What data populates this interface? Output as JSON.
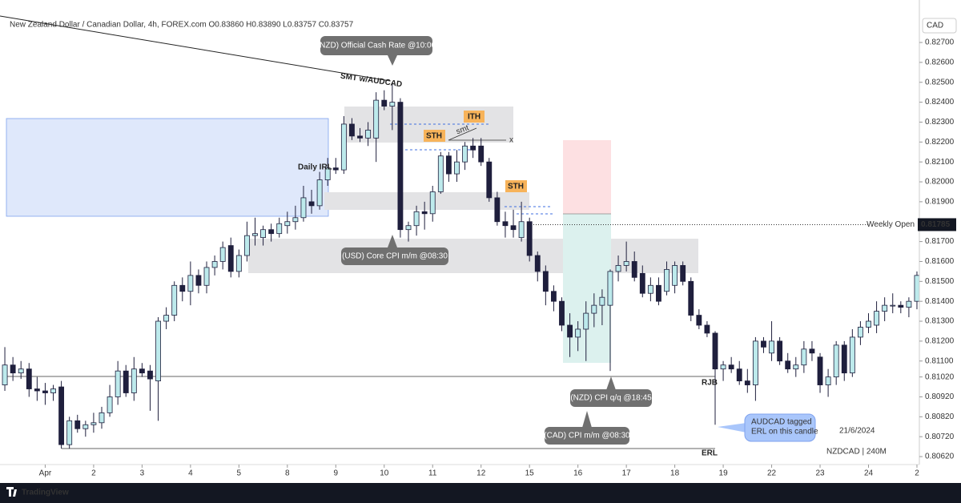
{
  "chart_data": {
    "type": "candlestick",
    "title": "New Zealand Dollar / Canadian Dollar, 4h, FOREX.com  O0.83860 H0.83890 L0.83757 C0.83757",
    "currency": "CAD",
    "up_color": "#bdeaec",
    "down_color": "#1f1f3d",
    "open": [
      0.8098,
      0.8108,
      0.8104,
      0.8106,
      0.8096,
      0.8095,
      0.8094,
      0.8097,
      0.8068,
      0.808,
      0.8076,
      0.8078,
      0.8079,
      0.8084,
      0.8092,
      0.8105,
      0.8094,
      0.8106,
      0.8105,
      0.81,
      0.813,
      0.8133,
      0.8148,
      0.8145,
      0.8153,
      0.8148,
      0.8157,
      0.816,
      0.8168,
      0.8155,
      0.8163,
      0.8173,
      0.8172,
      0.8176,
      0.8174,
      0.8178,
      0.818,
      0.8182,
      0.819,
      0.8188,
      0.8201,
      0.8207,
      0.8206,
      0.8229,
      0.8223,
      0.8222,
      0.8222,
      0.8241,
      0.8238,
      0.824,
      0.8176,
      0.8178,
      0.8185,
      0.8184,
      0.8195,
      0.8213,
      0.8204,
      0.821,
      0.8218,
      0.8218,
      0.821,
      0.8192,
      0.818,
      0.8178,
      0.8172,
      0.818,
      0.8163,
      0.8155,
      0.8145,
      0.814,
      0.8128,
      0.8122,
      0.8126,
      0.8134,
      0.8138,
      0.8138,
      0.8155,
      0.8158,
      0.816,
      0.8154,
      0.8144,
      0.8148,
      0.8145,
      0.8148,
      0.8158,
      0.815,
      0.8133,
      0.8128,
      0.8124,
      0.8106,
      0.8108,
      0.8106,
      0.81,
      0.8098,
      0.812,
      0.8114,
      0.812,
      0.811,
      0.8106,
      0.8108,
      0.8116,
      0.8112,
      0.8098,
      0.8102,
      0.8118,
      0.8104,
      0.8122,
      0.8127,
      0.8128,
      0.8135,
      0.8138,
      0.8138,
      0.8137,
      0.814
    ],
    "high": [
      0.8117,
      0.8112,
      0.811,
      0.8109,
      0.8102,
      0.8099,
      0.8098,
      0.81,
      0.8082,
      0.8083,
      0.808,
      0.8084,
      0.8087,
      0.8098,
      0.811,
      0.8108,
      0.8112,
      0.8109,
      0.8108,
      0.8132,
      0.8137,
      0.815,
      0.8152,
      0.816,
      0.8156,
      0.816,
      0.8163,
      0.817,
      0.8172,
      0.8166,
      0.818,
      0.8182,
      0.8178,
      0.8179,
      0.8182,
      0.8185,
      0.8188,
      0.8198,
      0.8196,
      0.8205,
      0.8212,
      0.8212,
      0.8233,
      0.8232,
      0.8227,
      0.823,
      0.8245,
      0.8246,
      0.825,
      0.8242,
      0.818,
      0.8188,
      0.819,
      0.8198,
      0.8215,
      0.8215,
      0.8216,
      0.822,
      0.8222,
      0.8222,
      0.8212,
      0.8195,
      0.8185,
      0.8186,
      0.819,
      0.8182,
      0.8165,
      0.8158,
      0.8148,
      0.8142,
      0.8134,
      0.813,
      0.814,
      0.8144,
      0.8146,
      0.8156,
      0.8163,
      0.817,
      0.8165,
      0.8158,
      0.8152,
      0.8152,
      0.816,
      0.816,
      0.816,
      0.8152,
      0.8136,
      0.813,
      0.8125,
      0.811,
      0.8112,
      0.811,
      0.8106,
      0.8122,
      0.8122,
      0.813,
      0.8122,
      0.8114,
      0.8112,
      0.812,
      0.812,
      0.8114,
      0.8106,
      0.812,
      0.812,
      0.8126,
      0.813,
      0.8134,
      0.814,
      0.8142,
      0.8144,
      0.814,
      0.8142,
      0.8155
    ],
    "low": [
      0.8095,
      0.81,
      0.8101,
      0.8092,
      0.809,
      0.8088,
      0.809,
      0.8066,
      0.8066,
      0.8074,
      0.8072,
      0.8074,
      0.8076,
      0.8082,
      0.8088,
      0.8092,
      0.809,
      0.8102,
      0.8085,
      0.808,
      0.8126,
      0.813,
      0.814,
      0.8138,
      0.8144,
      0.8144,
      0.8153,
      0.8156,
      0.8152,
      0.8152,
      0.816,
      0.8168,
      0.8168,
      0.817,
      0.8172,
      0.8174,
      0.8176,
      0.818,
      0.8184,
      0.8186,
      0.8198,
      0.8204,
      0.8204,
      0.8221,
      0.822,
      0.8218,
      0.821,
      0.8236,
      0.8226,
      0.8172,
      0.817,
      0.8173,
      0.8176,
      0.818,
      0.8194,
      0.82,
      0.82,
      0.8206,
      0.8212,
      0.8208,
      0.819,
      0.8178,
      0.8172,
      0.8172,
      0.817,
      0.816,
      0.815,
      0.8138,
      0.8135,
      0.8125,
      0.8112,
      0.8115,
      0.811,
      0.8127,
      0.8128,
      0.8105,
      0.815,
      0.8155,
      0.815,
      0.8142,
      0.814,
      0.8138,
      0.8143,
      0.8144,
      0.8148,
      0.813,
      0.8126,
      0.8122,
      0.8078,
      0.81,
      0.8104,
      0.8098,
      0.8094,
      0.809,
      0.8114,
      0.811,
      0.8108,
      0.8104,
      0.8102,
      0.8104,
      0.811,
      0.8094,
      0.8092,
      0.8098,
      0.81,
      0.8102,
      0.8118,
      0.8124,
      0.8124,
      0.813,
      0.8134,
      0.8134,
      0.8132,
      0.8136
    ],
    "close": [
      0.8108,
      0.8104,
      0.8106,
      0.8096,
      0.8095,
      0.8094,
      0.8096,
      0.8068,
      0.808,
      0.8076,
      0.8078,
      0.8079,
      0.8084,
      0.8092,
      0.8105,
      0.8094,
      0.8106,
      0.8104,
      0.8101,
      0.813,
      0.8133,
      0.8148,
      0.8145,
      0.8153,
      0.8148,
      0.8157,
      0.816,
      0.8167,
      0.8155,
      0.8163,
      0.8173,
      0.8174,
      0.8176,
      0.8174,
      0.8179,
      0.818,
      0.8182,
      0.8192,
      0.8188,
      0.8201,
      0.8207,
      0.8206,
      0.8229,
      0.8223,
      0.8222,
      0.8226,
      0.8241,
      0.8238,
      0.824,
      0.8176,
      0.8178,
      0.8185,
      0.8184,
      0.8195,
      0.8213,
      0.8204,
      0.821,
      0.8218,
      0.8216,
      0.821,
      0.8192,
      0.818,
      0.8178,
      0.8176,
      0.818,
      0.8163,
      0.8155,
      0.8145,
      0.814,
      0.8128,
      0.8122,
      0.8126,
      0.8134,
      0.8138,
      0.8142,
      0.8155,
      0.8158,
      0.816,
      0.8152,
      0.8144,
      0.8148,
      0.814,
      0.8156,
      0.8158,
      0.815,
      0.8133,
      0.8128,
      0.8124,
      0.8106,
      0.8108,
      0.8106,
      0.81,
      0.8098,
      0.812,
      0.8117,
      0.812,
      0.811,
      0.8106,
      0.8108,
      0.8116,
      0.8114,
      0.8098,
      0.8102,
      0.8118,
      0.8104,
      0.8122,
      0.8127,
      0.813,
      0.8135,
      0.8138,
      0.8138,
      0.8137,
      0.814,
      0.8153
    ],
    "xlim": [
      -0.6,
      113.3
    ],
    "xticks": [
      {
        "value": 5,
        "label": "Apr"
      },
      {
        "value": 11,
        "label": "2"
      },
      {
        "value": 17,
        "label": "3"
      },
      {
        "value": 23,
        "label": "4"
      },
      {
        "value": 29,
        "label": "5"
      },
      {
        "value": 35,
        "label": "8"
      },
      {
        "value": 41,
        "label": "9"
      },
      {
        "value": 47,
        "label": "10"
      },
      {
        "value": 53,
        "label": "11"
      },
      {
        "value": 59,
        "label": "12"
      },
      {
        "value": 65,
        "label": "15"
      },
      {
        "value": 71,
        "label": "16"
      },
      {
        "value": 77,
        "label": "17"
      },
      {
        "value": 83,
        "label": "18"
      },
      {
        "value": 89,
        "label": "19"
      },
      {
        "value": 95,
        "label": "22"
      },
      {
        "value": 101,
        "label": "23"
      },
      {
        "value": 107,
        "label": "24"
      },
      {
        "value": 113,
        "label": "2"
      }
    ],
    "ylim": [
      0.8058,
      0.8282
    ],
    "yticks": [
      {
        "value": 0.8062,
        "label": "0.80620"
      },
      {
        "value": 0.8072,
        "label": "0.80720"
      },
      {
        "value": 0.8082,
        "label": "0.80820"
      },
      {
        "value": 0.8092,
        "label": "0.80920"
      },
      {
        "value": 0.8102,
        "label": "0.81020"
      },
      {
        "value": 0.811,
        "label": "0.81100"
      },
      {
        "value": 0.812,
        "label": "0.81200"
      },
      {
        "value": 0.813,
        "label": "0.81300"
      },
      {
        "value": 0.814,
        "label": "0.81400"
      },
      {
        "value": 0.815,
        "label": "0.81500"
      },
      {
        "value": 0.816,
        "label": "0.81600"
      },
      {
        "value": 0.817,
        "label": "0.81700"
      },
      {
        "value": 0.819,
        "label": "0.81900"
      },
      {
        "value": 0.82,
        "label": "0.82000"
      },
      {
        "value": 0.821,
        "label": "0.82100"
      },
      {
        "value": 0.822,
        "label": "0.82200"
      },
      {
        "value": 0.823,
        "label": "0.82300"
      },
      {
        "value": 0.824,
        "label": "0.82400"
      },
      {
        "value": 0.825,
        "label": "0.82500"
      },
      {
        "value": 0.826,
        "label": "0.82600"
      },
      {
        "value": 0.827,
        "label": "0.82700"
      }
    ],
    "weekly_open": {
      "label": "Weekly Open",
      "value": 0.81785
    },
    "annotations": {
      "ocr": "(NZD) Official Cash Rate @10:00",
      "smt_audcad": "SMT w/AUDCAD",
      "ith": "ITH",
      "sth_1": "STH",
      "smt": "smt",
      "x_mark": "x",
      "sth_2": "STH",
      "daily_irl": "Daily IRL",
      "usd_cpi": "(USD) Core CPI m/m @08:30",
      "rjb": "RJB",
      "erl": "ERL",
      "nzd_cpi": "(NZD) CPI q/q @18:45",
      "cad_cpi": "(CAD) CPI m/m @08:30",
      "audcad_line1": "AUDCAD tagged",
      "audcad_line2": "ERL on this candle",
      "date": "21/6/2024",
      "symbol": "NZDCAD | 240M"
    },
    "brand": "TradingView"
  }
}
